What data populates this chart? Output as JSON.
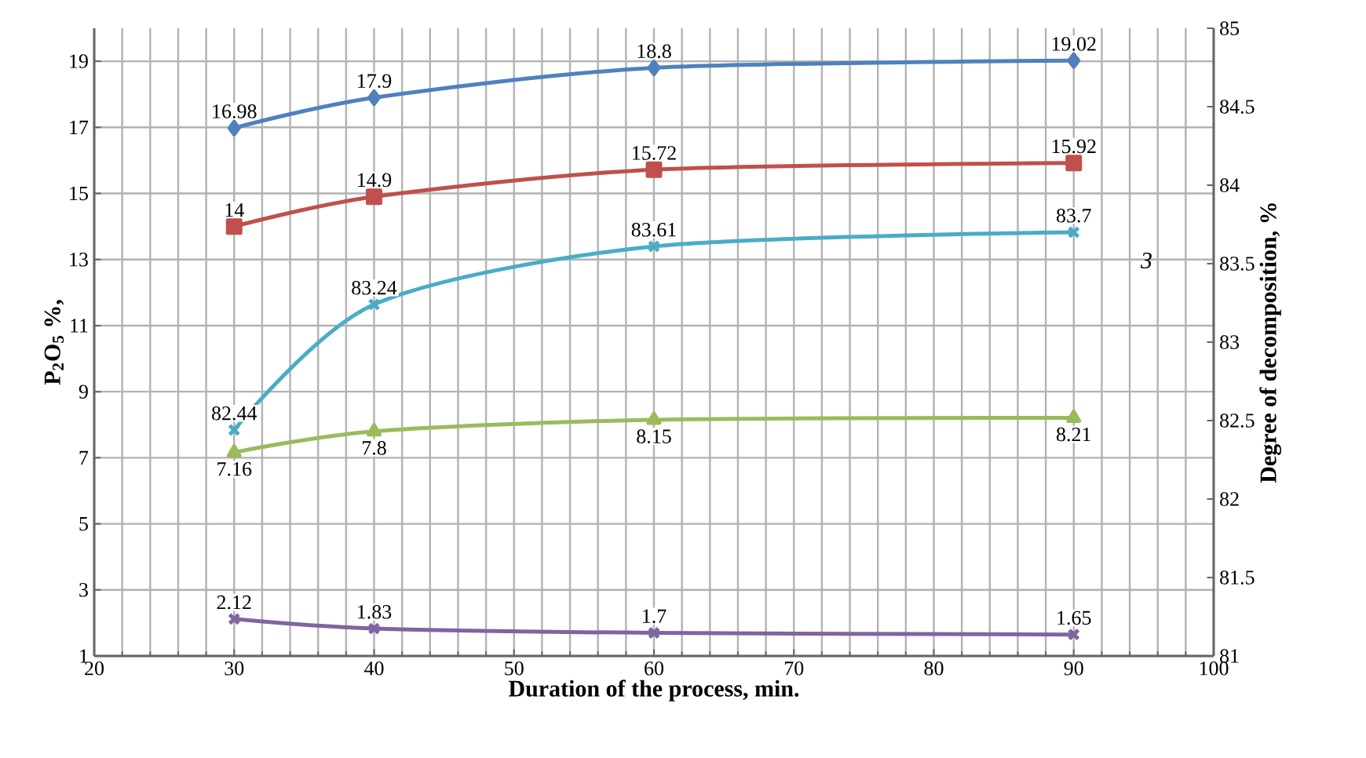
{
  "chart_data": {
    "type": "line",
    "xlabel": "Duration of the process, min.",
    "ylabel": "P$_{2}$O$_{5}$ %,",
    "y2label": "Degree of decomposition, %",
    "x": [
      30,
      40,
      60,
      90
    ],
    "xlim": [
      20,
      100
    ],
    "xticks": [
      20,
      30,
      40,
      50,
      60,
      70,
      80,
      90,
      100
    ],
    "ylim": [
      1,
      20
    ],
    "yticks": [
      1,
      3,
      5,
      7,
      9,
      11,
      13,
      15,
      17,
      19
    ],
    "y2lim": [
      81,
      85
    ],
    "y2ticks": [
      81,
      81.5,
      82,
      82.5,
      83,
      83.5,
      84,
      84.5,
      85
    ],
    "grid": true,
    "data_labels": true,
    "annotations": [
      "3"
    ],
    "series": [
      {
        "color": "#4f81bd",
        "marker": "diamond",
        "values": [
          16.98,
          17.9,
          18.8,
          19.02
        ]
      },
      {
        "color": "#c0504d",
        "marker": "square",
        "values": [
          14,
          14.9,
          15.72,
          15.92
        ]
      },
      {
        "color": "#4bacc6",
        "marker": "cross",
        "axis": "y2",
        "values": [
          82.44,
          83.24,
          83.61,
          83.7
        ]
      },
      {
        "color": "#9bbb59",
        "marker": "triangle",
        "values": [
          7.16,
          7.8,
          8.15,
          8.21
        ]
      },
      {
        "color": "#8064a2",
        "marker": "cross",
        "values": [
          2.12,
          1.83,
          1.7,
          1.65
        ]
      }
    ]
  }
}
